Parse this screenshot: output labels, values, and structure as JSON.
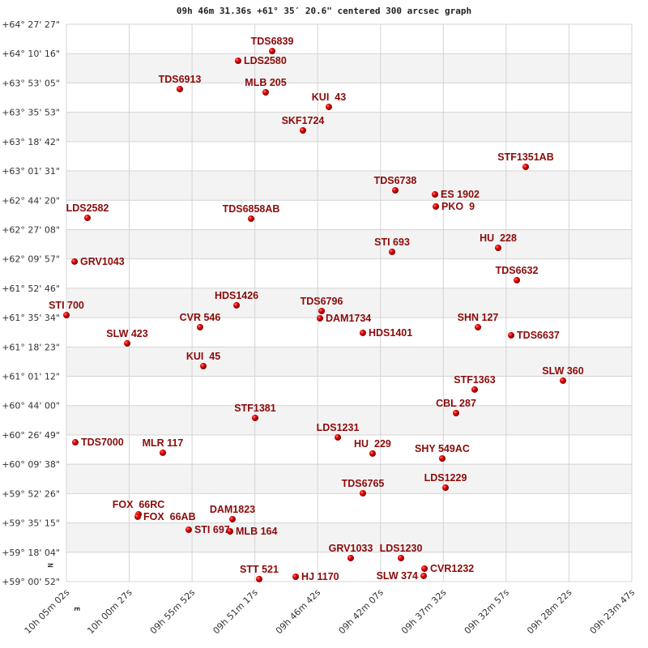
{
  "chart_data": {
    "type": "scatter",
    "title": "09h 46m 31.36s +61° 35′ 20.6\" centered 300 arcsec graph",
    "xlim_ra_hours": [
      10.08389,
      9.39639
    ],
    "ylim_dec_deg": [
      59.01444,
      64.4575
    ],
    "grid": true,
    "x_tick_labels": [
      "10h 05m 02s",
      "10h 00m 27s",
      "09h 55m 52s",
      "09h 51m 17s",
      "09h 46m 42s",
      "09h 42m 07s",
      "09h 37m 32s",
      "09h 32m 57s",
      "09h 28m 22s",
      "09h 23m 47s"
    ],
    "y_tick_labels": [
      "+64° 27' 27\"",
      "+64° 10' 16\"",
      "+63° 53' 05\"",
      "+63° 35' 53\"",
      "+63° 18' 42\"",
      "+63° 01' 31\"",
      "+62° 44' 20\"",
      "+62° 27' 08\"",
      "+62° 09' 57\"",
      "+61° 52' 46\"",
      "+61° 35' 34\"",
      "+61° 18' 23\"",
      "+61° 01' 12\"",
      "+60° 44' 00\"",
      "+60° 26' 49\"",
      "+60° 09' 38\"",
      "+59° 52' 26\"",
      "+59° 35' 15\"",
      "+59° 18' 04\"",
      "+59° 00' 52\""
    ],
    "north_label": "N",
    "east_label": "E",
    "marker_color": "#e00000",
    "label_color": "#8b0a0a",
    "points": [
      {
        "name": "TDS6839",
        "ra": 9.8337,
        "dec": 64.196
      },
      {
        "name": "LDS2580",
        "ra": 9.8751,
        "dec": 64.101
      },
      {
        "name": "TDS6913",
        "ra": 9.946,
        "dec": 63.825
      },
      {
        "name": "MLB 205",
        "ra": 9.8416,
        "dec": 63.793
      },
      {
        "name": "KUI  43",
        "ra": 9.7648,
        "dec": 63.651
      },
      {
        "name": "SKF1724",
        "ra": 9.7963,
        "dec": 63.421
      },
      {
        "name": "STF1351AB",
        "ra": 9.5254,
        "dec": 63.065
      },
      {
        "name": "TDS6738",
        "ra": 9.684,
        "dec": 62.836
      },
      {
        "name": "ES 1902",
        "ra": 9.6357,
        "dec": 62.796
      },
      {
        "name": "PKO  9",
        "ra": 9.6347,
        "dec": 62.678
      },
      {
        "name": "LDS2582",
        "ra": 10.0583,
        "dec": 62.567
      },
      {
        "name": "TDS6858AB",
        "ra": 9.8593,
        "dec": 62.559
      },
      {
        "name": "GRV1043",
        "ra": 10.074,
        "dec": 62.14
      },
      {
        "name": "STI 693",
        "ra": 9.6879,
        "dec": 62.235
      },
      {
        "name": "HU  228",
        "ra": 9.5589,
        "dec": 62.274
      },
      {
        "name": "TDS6632",
        "ra": 9.5362,
        "dec": 61.958
      },
      {
        "name": "HDS1426",
        "ra": 9.877,
        "dec": 61.713
      },
      {
        "name": "TDS6796",
        "ra": 9.7736,
        "dec": 61.657
      },
      {
        "name": "DAM1734",
        "ra": 9.7756,
        "dec": 61.586
      },
      {
        "name": "STI 700",
        "ra": 10.0839,
        "dec": 61.617
      },
      {
        "name": "CVR 546",
        "ra": 9.9214,
        "dec": 61.499
      },
      {
        "name": "SLW 423",
        "ra": 10.01,
        "dec": 61.341
      },
      {
        "name": "HDS1401",
        "ra": 9.7234,
        "dec": 61.444
      },
      {
        "name": "SHN 127",
        "ra": 9.5835,
        "dec": 61.499
      },
      {
        "name": "TDS6637",
        "ra": 9.5431,
        "dec": 61.42
      },
      {
        "name": "KUI  45",
        "ra": 9.9174,
        "dec": 61.119
      },
      {
        "name": "STF1363",
        "ra": 9.5875,
        "dec": 60.89
      },
      {
        "name": "SLW 360",
        "ra": 9.4801,
        "dec": 60.977
      },
      {
        "name": "CBL 287",
        "ra": 9.6101,
        "dec": 60.66
      },
      {
        "name": "STF1381",
        "ra": 9.8544,
        "dec": 60.613
      },
      {
        "name": "TDS7000",
        "ra": 10.0731,
        "dec": 60.375
      },
      {
        "name": "LDS1231",
        "ra": 9.7539,
        "dec": 60.423
      },
      {
        "name": "MLR 117",
        "ra": 9.9667,
        "dec": 60.273
      },
      {
        "name": "HU  229",
        "ra": 9.7116,
        "dec": 60.265
      },
      {
        "name": "SHY 549AC",
        "ra": 9.6269,
        "dec": 60.217
      },
      {
        "name": "LDS1229",
        "ra": 9.6229,
        "dec": 59.932
      },
      {
        "name": "TDS6765",
        "ra": 9.7234,
        "dec": 59.877
      },
      {
        "name": "FOX  66RC",
        "ra": 9.9962,
        "dec": 59.671
      },
      {
        "name": "FOX  66AB",
        "ra": 9.9972,
        "dec": 59.648
      },
      {
        "name": "STI 697",
        "ra": 9.9352,
        "dec": 59.521
      },
      {
        "name": "DAM1823",
        "ra": 9.882,
        "dec": 59.624
      },
      {
        "name": "MLB 164",
        "ra": 9.8849,
        "dec": 59.505
      },
      {
        "name": "GRV1033",
        "ra": 9.7382,
        "dec": 59.244
      },
      {
        "name": "LDS1230",
        "ra": 9.6771,
        "dec": 59.244
      },
      {
        "name": "CVR1232",
        "ra": 9.6485,
        "dec": 59.141
      },
      {
        "name": "SLW 374",
        "ra": 9.6495,
        "dec": 59.07
      },
      {
        "name": "STT 521",
        "ra": 9.8495,
        "dec": 59.039
      },
      {
        "name": "HJ 1170",
        "ra": 9.8051,
        "dec": 59.062
      }
    ]
  }
}
